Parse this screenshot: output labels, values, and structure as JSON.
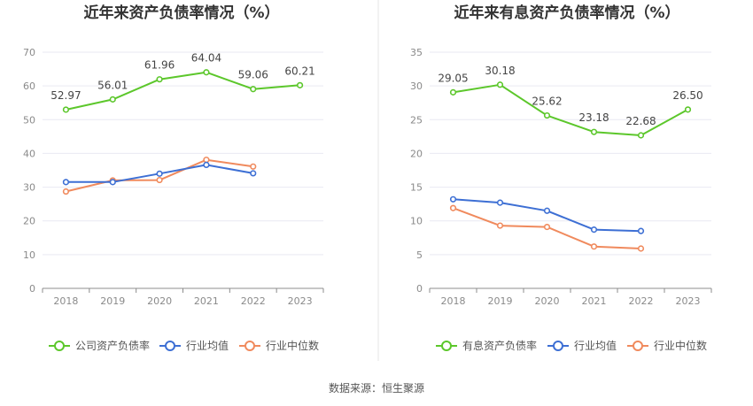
{
  "source_text": "数据来源：恒生聚源",
  "chart_data": [
    {
      "type": "line",
      "title": "近年来资产负债率情况（%）",
      "categories": [
        "2018",
        "2019",
        "2020",
        "2021",
        "2022",
        "2023"
      ],
      "ylim": [
        0,
        70
      ],
      "yticks": [
        "0",
        "10",
        "20",
        "30",
        "40",
        "50",
        "60",
        "70"
      ],
      "grid": true,
      "legend_position": "bottom",
      "series": [
        {
          "name": "公司资产负债率",
          "color": "#5cc72b",
          "values": [
            52.97,
            56.01,
            61.96,
            64.04,
            59.06,
            60.21
          ],
          "labels": [
            "52.97",
            "56.01",
            "61.96",
            "64.04",
            "59.06",
            "60.21"
          ]
        },
        {
          "name": "行业均值",
          "color": "#3d6fd4",
          "values": [
            31.5,
            31.5,
            34.0,
            36.6,
            34.1,
            null
          ]
        },
        {
          "name": "行业中位数",
          "color": "#f08a5d",
          "values": [
            28.7,
            32.0,
            32.1,
            38.1,
            36.1,
            null
          ]
        }
      ]
    },
    {
      "type": "line",
      "title": "近年来有息资产负债率情况（%）",
      "categories": [
        "2018",
        "2019",
        "2020",
        "2021",
        "2022",
        "2023"
      ],
      "ylim": [
        0,
        35
      ],
      "yticks": [
        "0",
        "5",
        "10",
        "15",
        "20",
        "25",
        "30",
        "35"
      ],
      "grid": true,
      "legend_position": "bottom",
      "series": [
        {
          "name": "有息资产负债率",
          "color": "#5cc72b",
          "values": [
            29.05,
            30.18,
            25.62,
            23.18,
            22.68,
            26.5
          ],
          "labels": [
            "29.05",
            "30.18",
            "25.62",
            "23.18",
            "22.68",
            "26.50"
          ]
        },
        {
          "name": "行业均值",
          "color": "#3d6fd4",
          "values": [
            13.2,
            12.7,
            11.5,
            8.7,
            8.5,
            null
          ]
        },
        {
          "name": "行业中位数",
          "color": "#f08a5d",
          "values": [
            11.9,
            9.3,
            9.1,
            6.2,
            5.9,
            null
          ]
        }
      ]
    }
  ]
}
